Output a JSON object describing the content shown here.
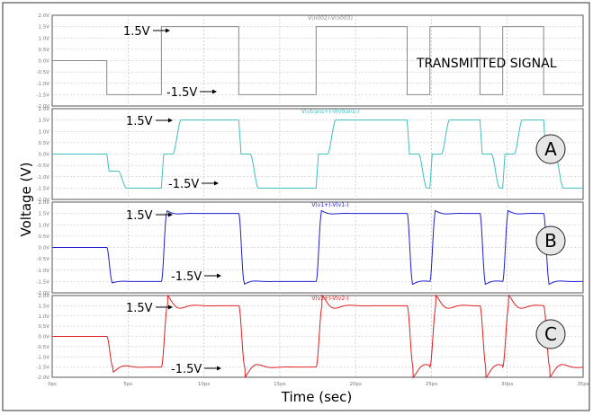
{
  "xlabel": "Time (sec)",
  "ylabel": "Voltage (V)",
  "x_ticks": [
    "0ps",
    "5ps",
    "10ps",
    "15ps",
    "20ps",
    "25ps",
    "30ps",
    "35ps"
  ],
  "y_ticks": [
    "2.0V",
    "1.5V",
    "1.0V",
    "0.5V",
    "0.0V",
    "-0.5V",
    "-1.0V",
    "-1.5V",
    "-2.0V"
  ],
  "callouts": {
    "high": "1.5V",
    "low": "-1.5V"
  },
  "chart_data": [
    {
      "type": "line",
      "title": "V(n002)-V(n003)",
      "panel_label": "TRANSMITTED SIGNAL",
      "color": "#8a8a8a",
      "response": "ideal",
      "xlim": [
        0,
        35
      ],
      "ylim": [
        -2,
        2
      ],
      "initial_level": 0,
      "edges": [
        [
          3.6,
          -1.5
        ],
        [
          7.2,
          1.5
        ],
        [
          12.3,
          -1.5
        ],
        [
          17.4,
          1.5
        ],
        [
          23.4,
          -1.5
        ],
        [
          24.9,
          1.5
        ],
        [
          28.2,
          -1.5
        ],
        [
          29.7,
          1.5
        ],
        [
          32.4,
          -1.5
        ]
      ],
      "high": 1.5,
      "low": -1.5
    },
    {
      "type": "line",
      "title": "V(vtrans+)-V(vtrans-)",
      "panel_label": "A",
      "color": "#3fbfbf",
      "response": "two-step",
      "xlim": [
        0,
        35
      ],
      "ylim": [
        -2,
        2
      ],
      "initial_level": 0,
      "edges": [
        [
          3.6,
          -1.5
        ],
        [
          7.2,
          1.5
        ],
        [
          12.3,
          -1.5
        ],
        [
          17.4,
          1.5
        ],
        [
          23.4,
          -1.5
        ],
        [
          24.9,
          1.5
        ],
        [
          28.2,
          -1.5
        ],
        [
          29.7,
          1.5
        ],
        [
          32.4,
          -1.5
        ]
      ],
      "high": 1.5,
      "low": -1.5
    },
    {
      "type": "line",
      "title": "V(v1+)-V(v1-)",
      "panel_label": "B",
      "color": "#1f1fcf",
      "response": "fast",
      "xlim": [
        0,
        35
      ],
      "ylim": [
        -2,
        2
      ],
      "initial_level": 0,
      "edges": [
        [
          3.6,
          -1.5
        ],
        [
          7.2,
          1.5
        ],
        [
          12.3,
          -1.5
        ],
        [
          17.4,
          1.5
        ],
        [
          23.4,
          -1.5
        ],
        [
          24.9,
          1.5
        ],
        [
          28.2,
          -1.5
        ],
        [
          29.7,
          1.5
        ],
        [
          32.4,
          -1.5
        ]
      ],
      "high": 1.5,
      "low": -1.5
    },
    {
      "type": "line",
      "title": "V(v2+)-V(v2-)",
      "panel_label": "C",
      "color": "#e02020",
      "response": "ringing",
      "xlim": [
        0,
        35
      ],
      "ylim": [
        -2,
        2
      ],
      "initial_level": 0,
      "edges": [
        [
          3.6,
          -1.5
        ],
        [
          7.2,
          1.5
        ],
        [
          12.3,
          -1.5
        ],
        [
          17.4,
          1.5
        ],
        [
          23.4,
          -1.5
        ],
        [
          24.9,
          1.5
        ],
        [
          28.2,
          -1.5
        ],
        [
          29.7,
          1.5
        ],
        [
          32.4,
          -1.5
        ]
      ],
      "high": 1.5,
      "low": -1.5
    }
  ]
}
